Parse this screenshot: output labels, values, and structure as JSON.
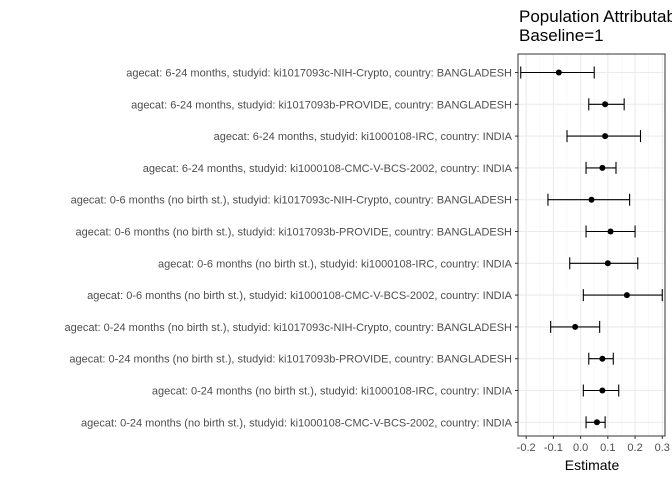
{
  "chart_data": {
    "type": "scatter",
    "title": "Population Attributable Fraction",
    "subtitle": "Baseline=1",
    "xlabel": "Estimate",
    "ylabel": "",
    "xlim": [
      -0.23,
      0.31
    ],
    "xticks": [
      -0.2,
      -0.1,
      0.0,
      0.1,
      0.2,
      0.3
    ],
    "xtick_labels": [
      "-0.2",
      "-0.1",
      "0.0",
      "0.1",
      "0.2",
      "0.3"
    ],
    "grid": true,
    "legend": "none",
    "colors": {
      "points": "#000000",
      "grid_major": "#ebebeb",
      "grid_minor": "#f5f5f5",
      "panel_border": "#333333",
      "tick_text": "#4d4d4d"
    },
    "points": [
      {
        "label": "agecat: 6-24 months, studyid: ki1017093c-NIH-Crypto, country: BANGLADESH",
        "estimate": -0.08,
        "lower": -0.22,
        "upper": 0.05
      },
      {
        "label": "agecat: 6-24 months, studyid: ki1017093b-PROVIDE, country: BANGLADESH",
        "estimate": 0.09,
        "lower": 0.03,
        "upper": 0.16
      },
      {
        "label": "agecat: 6-24 months, studyid: ki1000108-IRC, country: INDIA",
        "estimate": 0.09,
        "lower": -0.05,
        "upper": 0.22
      },
      {
        "label": "agecat: 6-24 months, studyid: ki1000108-CMC-V-BCS-2002, country: INDIA",
        "estimate": 0.08,
        "lower": 0.02,
        "upper": 0.13
      },
      {
        "label": "agecat: 0-6 months (no birth st.), studyid: ki1017093c-NIH-Crypto, country: BANGLADESH",
        "estimate": 0.04,
        "lower": -0.12,
        "upper": 0.18
      },
      {
        "label": "agecat: 0-6 months (no birth st.), studyid: ki1017093b-PROVIDE, country: BANGLADESH",
        "estimate": 0.11,
        "lower": 0.02,
        "upper": 0.2
      },
      {
        "label": "agecat: 0-6 months (no birth st.), studyid: ki1000108-IRC, country: INDIA",
        "estimate": 0.1,
        "lower": -0.04,
        "upper": 0.21
      },
      {
        "label": "agecat: 0-6 months (no birth st.), studyid: ki1000108-CMC-V-BCS-2002, country: INDIA",
        "estimate": 0.17,
        "lower": 0.01,
        "upper": 0.3
      },
      {
        "label": "agecat: 0-24 months (no birth st.), studyid: ki1017093c-NIH-Crypto, country: BANGLADESH",
        "estimate": -0.02,
        "lower": -0.11,
        "upper": 0.07
      },
      {
        "label": "agecat: 0-24 months (no birth st.), studyid: ki1017093b-PROVIDE, country: BANGLADESH",
        "estimate": 0.08,
        "lower": 0.03,
        "upper": 0.12
      },
      {
        "label": "agecat: 0-24 months (no birth st.), studyid: ki1000108-IRC, country: INDIA",
        "estimate": 0.08,
        "lower": 0.01,
        "upper": 0.14
      },
      {
        "label": "agecat: 0-24 months (no birth st.), studyid: ki1000108-CMC-V-BCS-2002, country: INDIA",
        "estimate": 0.06,
        "lower": 0.02,
        "upper": 0.09
      }
    ]
  }
}
